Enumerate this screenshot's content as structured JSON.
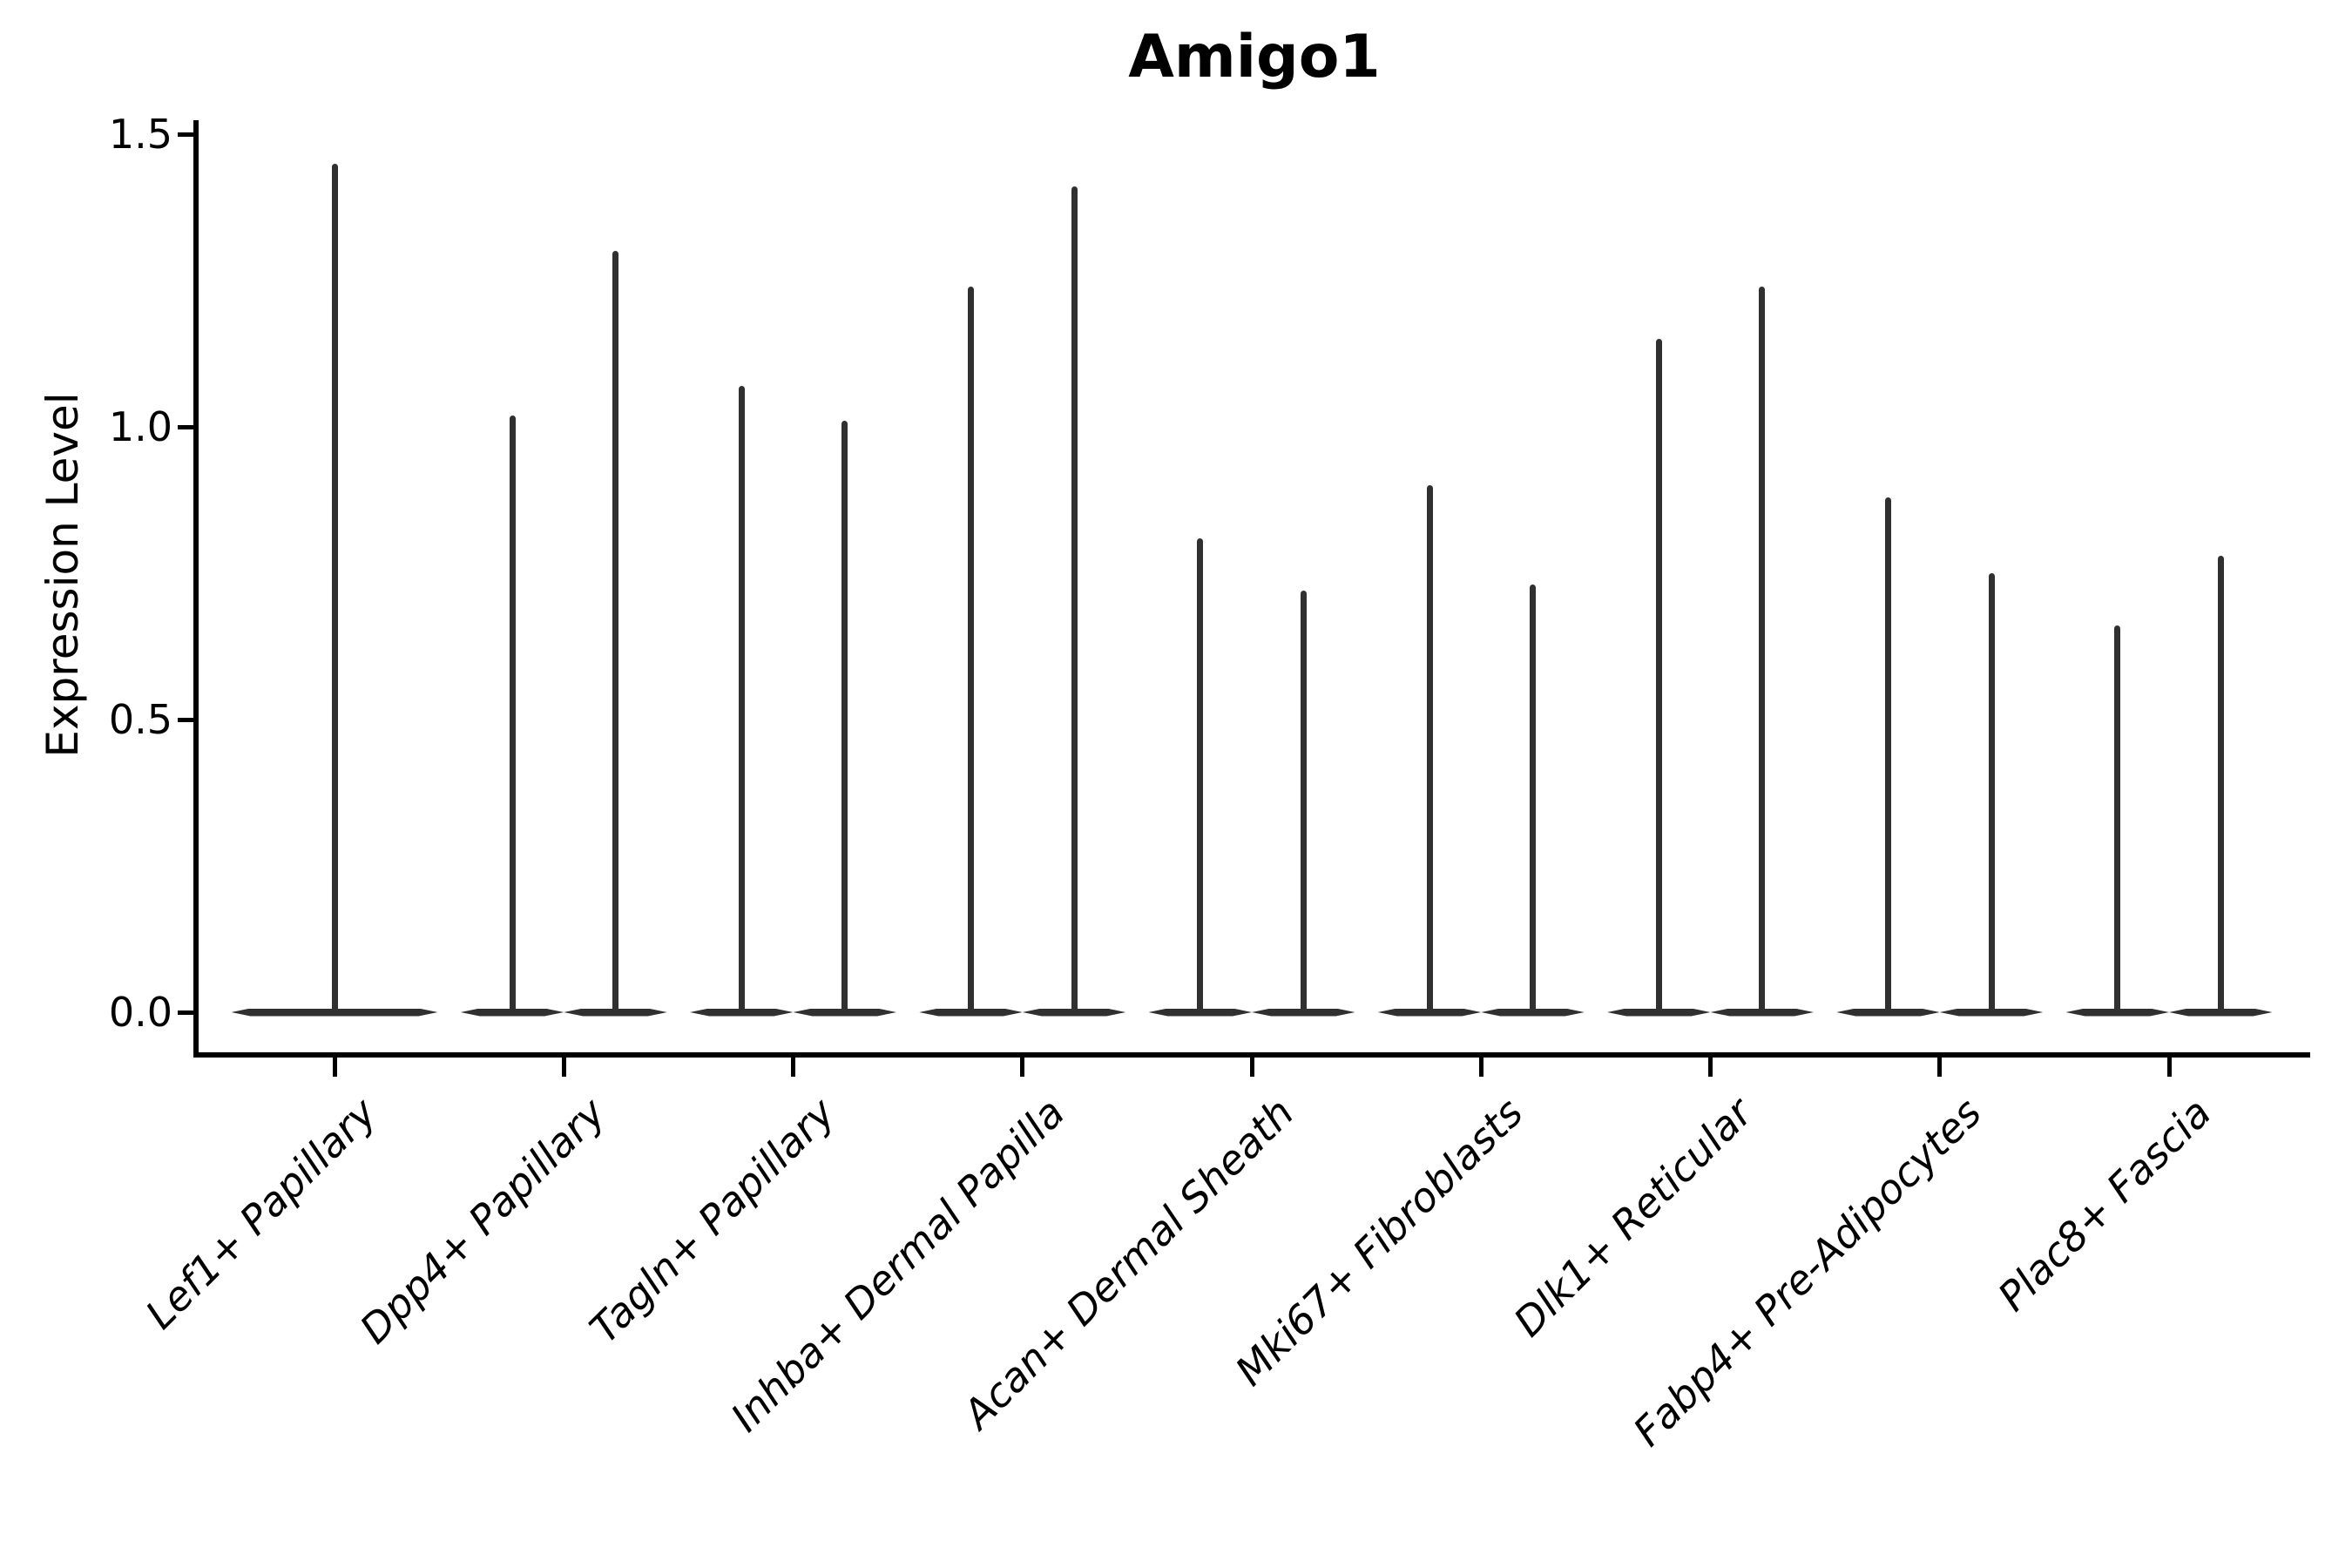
{
  "figure": {
    "background_color": "#ffffff",
    "text_color": "#000000",
    "axis_color": "#000000",
    "violin_color": "#303030"
  },
  "chart_data": {
    "type": "violin",
    "title": "Amigo1",
    "xlabel": "",
    "ylabel": "Expression Level",
    "ylim": [
      -0.07,
      1.52
    ],
    "yticks": [
      0.0,
      0.5,
      1.0,
      1.5
    ],
    "ytick_labels": [
      "0.0",
      "0.5",
      "1.0",
      "1.5"
    ],
    "grid": false,
    "legend": "none",
    "x_tick_label_rotation_deg": 45,
    "x_tick_label_style": "italic",
    "description": "Zero-inflated single-cell expression violins: each violin collapses to a wide flat line at 0 with a thin central spike rising to its maximum expression value. Categories 2-9 contain two side-by-side sub-violins; category 1 contains one full-width violin.",
    "baseline_value": 0.0,
    "categories": [
      "Lef1+ Papillary",
      "Dpp4+ Papillary",
      "Tagln+ Papillary",
      "Inhba+ Dermal Papilla",
      "Acan+ Dermal Sheath",
      "Mki67+ Fibroblasts",
      "Dlk1+ Reticular",
      "Fabp4+ Pre-Adipocytes",
      "Plac8+ Fascia"
    ],
    "violins": [
      {
        "category": "Lef1+ Papillary",
        "sub_violin_max_values": [
          1.45
        ]
      },
      {
        "category": "Dpp4+ Papillary",
        "sub_violin_max_values": [
          1.02,
          1.3
        ]
      },
      {
        "category": "Tagln+ Papillary",
        "sub_violin_max_values": [
          1.07,
          1.01
        ]
      },
      {
        "category": "Inhba+ Dermal Papilla",
        "sub_violin_max_values": [
          1.24,
          1.41
        ]
      },
      {
        "category": "Acan+ Dermal Sheath",
        "sub_violin_max_values": [
          0.81,
          0.72
        ]
      },
      {
        "category": "Mki67+ Fibroblasts",
        "sub_violin_max_values": [
          0.9,
          0.73
        ]
      },
      {
        "category": "Dlk1+ Reticular",
        "sub_violin_max_values": [
          1.15,
          1.24
        ]
      },
      {
        "category": "Fabp4+ Pre-Adipocytes",
        "sub_violin_max_values": [
          0.88,
          0.75
        ]
      },
      {
        "category": "Plac8+ Fascia",
        "sub_violin_max_values": [
          0.66,
          0.78
        ]
      }
    ]
  }
}
